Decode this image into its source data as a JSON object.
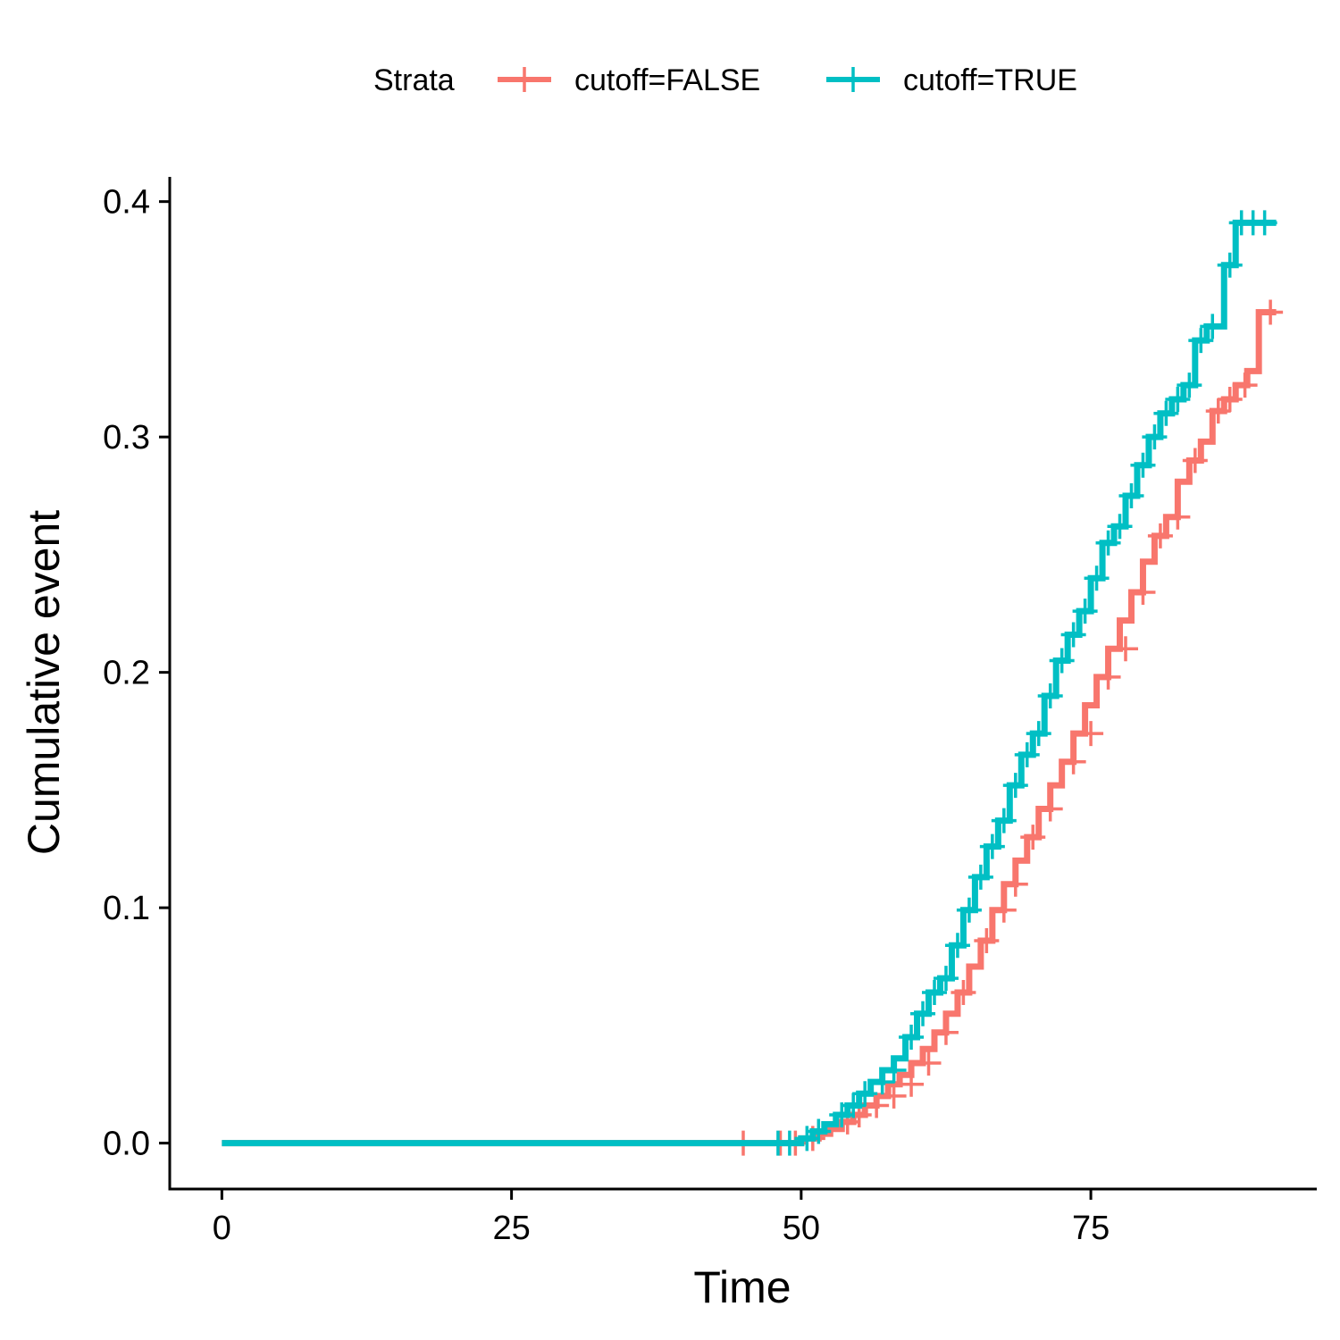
{
  "chart_data": {
    "type": "line",
    "subtype": "step",
    "xlabel": "Time",
    "ylabel": "Cumulative event",
    "xlim": [
      -4.5,
      94.5
    ],
    "ylim": [
      -0.0195,
      0.4105
    ],
    "xticks": [
      0,
      25,
      50,
      75
    ],
    "yticks": [
      0.0,
      0.1,
      0.2,
      0.3,
      0.4
    ],
    "ytick_labels": [
      "0.0",
      "0.1",
      "0.2",
      "0.3",
      "0.4"
    ],
    "grid": false,
    "legend": {
      "title": "Strata",
      "position": "top"
    },
    "series": [
      {
        "name": "cutoff=FALSE",
        "color": "#F8766D",
        "steps": [
          [
            0,
            0.0
          ],
          [
            46,
            0.0
          ],
          [
            50,
            0.002
          ],
          [
            51.5,
            0.004
          ],
          [
            52.5,
            0.006
          ],
          [
            53.5,
            0.009
          ],
          [
            54.5,
            0.012
          ],
          [
            55.5,
            0.016
          ],
          [
            56.5,
            0.02
          ],
          [
            57.5,
            0.025
          ],
          [
            58.5,
            0.029
          ],
          [
            59.5,
            0.034
          ],
          [
            60.5,
            0.04
          ],
          [
            61.5,
            0.047
          ],
          [
            62.5,
            0.055
          ],
          [
            63.5,
            0.064
          ],
          [
            64.5,
            0.075
          ],
          [
            65.5,
            0.086
          ],
          [
            66.5,
            0.099
          ],
          [
            67.5,
            0.11
          ],
          [
            68.5,
            0.12
          ],
          [
            69.5,
            0.13
          ],
          [
            70.5,
            0.142
          ],
          [
            71.5,
            0.152
          ],
          [
            72.5,
            0.162
          ],
          [
            73.5,
            0.174
          ],
          [
            74.5,
            0.186
          ],
          [
            75.5,
            0.198
          ],
          [
            76.5,
            0.21
          ],
          [
            77.5,
            0.222
          ],
          [
            78.5,
            0.234
          ],
          [
            79.5,
            0.247
          ],
          [
            80.5,
            0.258
          ],
          [
            81.5,
            0.266
          ],
          [
            82.5,
            0.281
          ],
          [
            83.5,
            0.29
          ],
          [
            84.5,
            0.298
          ],
          [
            85.5,
            0.311
          ],
          [
            86.5,
            0.316
          ],
          [
            87.5,
            0.322
          ],
          [
            88.5,
            0.328
          ],
          [
            89.5,
            0.353
          ],
          [
            91,
            0.353
          ]
        ],
        "censors": [
          [
            45,
            0.0
          ],
          [
            48.2,
            0.0
          ],
          [
            49.5,
            0.0
          ],
          [
            51,
            0.002
          ],
          [
            54,
            0.009
          ],
          [
            55,
            0.012
          ],
          [
            56.5,
            0.016
          ],
          [
            58,
            0.02
          ],
          [
            59.5,
            0.025
          ],
          [
            61,
            0.034
          ],
          [
            62.5,
            0.047
          ],
          [
            64,
            0.064
          ],
          [
            66,
            0.086
          ],
          [
            67.5,
            0.099
          ],
          [
            68.5,
            0.11
          ],
          [
            70,
            0.13
          ],
          [
            71.5,
            0.142
          ],
          [
            73.5,
            0.162
          ],
          [
            75,
            0.174
          ],
          [
            76.5,
            0.198
          ],
          [
            78,
            0.21
          ],
          [
            79.5,
            0.234
          ],
          [
            81,
            0.258
          ],
          [
            82.5,
            0.266
          ],
          [
            84,
            0.29
          ],
          [
            86,
            0.311
          ],
          [
            87,
            0.316
          ],
          [
            88.3,
            0.322
          ],
          [
            90.5,
            0.353
          ]
        ]
      },
      {
        "name": "cutoff=TRUE",
        "color": "#00BFC4",
        "steps": [
          [
            0,
            0.0
          ],
          [
            47,
            0.0
          ],
          [
            50,
            0.002
          ],
          [
            51,
            0.005
          ],
          [
            52,
            0.008
          ],
          [
            53,
            0.012
          ],
          [
            54,
            0.016
          ],
          [
            55,
            0.021
          ],
          [
            56,
            0.026
          ],
          [
            57,
            0.031
          ],
          [
            58,
            0.036
          ],
          [
            59,
            0.045
          ],
          [
            60,
            0.055
          ],
          [
            61,
            0.064
          ],
          [
            62,
            0.07
          ],
          [
            63,
            0.084
          ],
          [
            64,
            0.099
          ],
          [
            65,
            0.113
          ],
          [
            66,
            0.126
          ],
          [
            67,
            0.137
          ],
          [
            68,
            0.152
          ],
          [
            69,
            0.165
          ],
          [
            70,
            0.174
          ],
          [
            71,
            0.19
          ],
          [
            72,
            0.205
          ],
          [
            73,
            0.216
          ],
          [
            74,
            0.226
          ],
          [
            75,
            0.24
          ],
          [
            76,
            0.255
          ],
          [
            77,
            0.262
          ],
          [
            78,
            0.275
          ],
          [
            79,
            0.288
          ],
          [
            80,
            0.3
          ],
          [
            81,
            0.31
          ],
          [
            82,
            0.316
          ],
          [
            83,
            0.322
          ],
          [
            84,
            0.341
          ],
          [
            85,
            0.347
          ],
          [
            86.5,
            0.373
          ],
          [
            87.5,
            0.391
          ],
          [
            91,
            0.391
          ]
        ],
        "censors": [
          [
            48,
            0.0
          ],
          [
            49,
            0.0
          ],
          [
            50.5,
            0.002
          ],
          [
            51.5,
            0.005
          ],
          [
            53.5,
            0.012
          ],
          [
            54.5,
            0.016
          ],
          [
            55.5,
            0.021
          ],
          [
            57,
            0.026
          ],
          [
            58,
            0.031
          ],
          [
            59.5,
            0.045
          ],
          [
            60.5,
            0.055
          ],
          [
            61.5,
            0.064
          ],
          [
            62.5,
            0.07
          ],
          [
            63.5,
            0.084
          ],
          [
            64.5,
            0.099
          ],
          [
            65.5,
            0.113
          ],
          [
            66.5,
            0.126
          ],
          [
            67.5,
            0.137
          ],
          [
            68.5,
            0.152
          ],
          [
            69.5,
            0.165
          ],
          [
            70.5,
            0.174
          ],
          [
            71.5,
            0.19
          ],
          [
            72.5,
            0.205
          ],
          [
            73.5,
            0.216
          ],
          [
            74.5,
            0.226
          ],
          [
            75.5,
            0.24
          ],
          [
            76.5,
            0.255
          ],
          [
            77.5,
            0.262
          ],
          [
            78.5,
            0.275
          ],
          [
            79.5,
            0.288
          ],
          [
            80.5,
            0.3
          ],
          [
            81.5,
            0.31
          ],
          [
            82.5,
            0.316
          ],
          [
            83.5,
            0.322
          ],
          [
            84.5,
            0.341
          ],
          [
            85.5,
            0.347
          ],
          [
            87,
            0.373
          ],
          [
            88,
            0.391
          ],
          [
            89,
            0.391
          ],
          [
            90,
            0.391
          ]
        ]
      }
    ]
  }
}
